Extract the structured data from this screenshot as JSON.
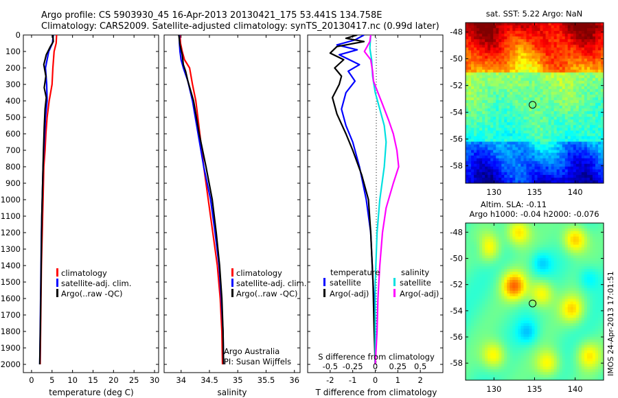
{
  "title_line1": "Argo profile: CS 5903930_45 16-Apr-2013 20130421_175 53.441S 134.758E",
  "title_line2": "Climatology: CARS2009. Satellite-adjusted climatology: synTS_20130417.nc (0.99d later)",
  "chart_data": [
    {
      "type": "line",
      "name": "temperature",
      "xlabel": "temperature (deg C)",
      "xlim": [
        -2,
        31
      ],
      "ylim": [
        0,
        2050
      ],
      "xticks": [
        0,
        5,
        10,
        15,
        20,
        25,
        30
      ],
      "yticks": [
        0,
        100,
        200,
        300,
        400,
        500,
        600,
        700,
        800,
        900,
        1000,
        1100,
        1200,
        1300,
        1400,
        1500,
        1600,
        1700,
        1800,
        1900,
        2000
      ],
      "legend": [
        "climatology",
        "satellite-adj. clim.",
        "Argo(..raw -QC)"
      ],
      "series": [
        {
          "name": "climatology",
          "color": "#ff0000",
          "points": [
            [
              6.1,
              0
            ],
            [
              6.0,
              50
            ],
            [
              5.5,
              100
            ],
            [
              5.2,
              200
            ],
            [
              5.0,
              300
            ],
            [
              4.3,
              400
            ],
            [
              3.8,
              500
            ],
            [
              3.5,
              600
            ],
            [
              3.3,
              700
            ],
            [
              3.0,
              800
            ],
            [
              2.8,
              1000
            ],
            [
              2.6,
              1200
            ],
            [
              2.4,
              1400
            ],
            [
              2.3,
              1600
            ],
            [
              2.2,
              1800
            ],
            [
              2.1,
              2000
            ]
          ]
        },
        {
          "name": "satellite-adj. clim.",
          "color": "#0000ff",
          "points": [
            [
              5.3,
              0
            ],
            [
              5.1,
              50
            ],
            [
              4.2,
              100
            ],
            [
              3.4,
              200
            ],
            [
              3.7,
              300
            ],
            [
              3.8,
              400
            ],
            [
              3.4,
              500
            ],
            [
              3.2,
              600
            ],
            [
              3.0,
              700
            ],
            [
              2.8,
              800
            ],
            [
              2.6,
              1000
            ],
            [
              2.4,
              1200
            ],
            [
              2.3,
              1400
            ],
            [
              2.2,
              1600
            ],
            [
              2.1,
              1800
            ],
            [
              2.0,
              2000
            ]
          ]
        },
        {
          "name": "Argo(..raw -QC)",
          "color": "#000000",
          "points": [
            [
              5.2,
              0
            ],
            [
              5.3,
              40
            ],
            [
              4.6,
              70
            ],
            [
              3.6,
              120
            ],
            [
              3.0,
              180
            ],
            [
              3.5,
              250
            ],
            [
              3.1,
              320
            ],
            [
              3.6,
              380
            ],
            [
              3.3,
              450
            ],
            [
              3.1,
              560
            ],
            [
              2.9,
              700
            ],
            [
              2.7,
              900
            ],
            [
              2.5,
              1100
            ],
            [
              2.4,
              1300
            ],
            [
              2.3,
              1500
            ],
            [
              2.2,
              1700
            ],
            [
              2.1,
              1850
            ],
            [
              2.0,
              2000
            ]
          ]
        }
      ]
    },
    {
      "type": "line",
      "name": "salinity",
      "xlabel": "salinity",
      "xlim": [
        33.7,
        36.1
      ],
      "ylim": [
        0,
        2050
      ],
      "xticks": [
        34,
        34.5,
        35,
        35.5,
        36
      ],
      "legend": [
        "climatology",
        "satellite-adj. clim.",
        "Argo(..raw -QC)"
      ],
      "annotation": [
        "Argo Australia",
        "PI: Susan Wijffels"
      ],
      "series": [
        {
          "name": "climatology",
          "color": "#ff0000",
          "points": [
            [
              33.98,
              0
            ],
            [
              33.99,
              50
            ],
            [
              34.02,
              100
            ],
            [
              34.06,
              150
            ],
            [
              34.15,
              200
            ],
            [
              34.2,
              300
            ],
            [
              34.26,
              400
            ],
            [
              34.33,
              600
            ],
            [
              34.4,
              800
            ],
            [
              34.48,
              1000
            ],
            [
              34.56,
              1200
            ],
            [
              34.64,
              1400
            ],
            [
              34.69,
              1600
            ],
            [
              34.72,
              1800
            ],
            [
              34.73,
              2000
            ]
          ]
        },
        {
          "name": "satellite-adj. clim.",
          "color": "#0000ff",
          "points": [
            [
              33.97,
              0
            ],
            [
              33.97,
              50
            ],
            [
              33.98,
              100
            ],
            [
              34.0,
              150
            ],
            [
              34.04,
              200
            ],
            [
              34.12,
              280
            ],
            [
              34.2,
              400
            ],
            [
              34.3,
              600
            ],
            [
              34.4,
              800
            ],
            [
              34.52,
              1000
            ],
            [
              34.6,
              1200
            ],
            [
              34.67,
              1400
            ],
            [
              34.71,
              1600
            ],
            [
              34.74,
              1800
            ],
            [
              34.75,
              2000
            ]
          ]
        },
        {
          "name": "Argo(..raw -QC)",
          "color": "#000000",
          "points": [
            [
              33.96,
              0
            ],
            [
              33.98,
              60
            ],
            [
              34.02,
              120
            ],
            [
              34.04,
              180
            ],
            [
              34.08,
              220
            ],
            [
              34.12,
              280
            ],
            [
              34.22,
              400
            ],
            [
              34.32,
              600
            ],
            [
              34.44,
              800
            ],
            [
              34.55,
              1000
            ],
            [
              34.62,
              1200
            ],
            [
              34.68,
              1400
            ],
            [
              34.72,
              1600
            ],
            [
              34.74,
              1800
            ],
            [
              34.75,
              2000
            ]
          ]
        }
      ]
    },
    {
      "type": "line",
      "name": "difference",
      "xlabel": "T difference from climatology",
      "xlabel_top": "S difference from climatology",
      "xlim": [
        -3,
        3
      ],
      "ylim": [
        0,
        2050
      ],
      "xticks": [
        -2,
        -1,
        0,
        1,
        2
      ],
      "xticks_labels": [
        "-2",
        "-1",
        "0",
        "1",
        "2"
      ],
      "sticks": [
        -0.5,
        -0.25,
        0,
        0.25,
        0.5
      ],
      "sticks_labels": [
        "-0.5",
        "-0.25",
        "0",
        "0.25",
        "0.5"
      ],
      "slim": [
        -0.75,
        0.75
      ],
      "legend_left_title": "temperature",
      "legend_right_title": "salinity",
      "legend": [
        "satellite",
        "Argo(-adj)",
        "satellite",
        "Argo(-adj)"
      ],
      "series": [
        {
          "name": "T satellite",
          "color": "#0000ff",
          "scale": "T",
          "points": [
            [
              -0.5,
              0
            ],
            [
              -0.9,
              30
            ],
            [
              -1.7,
              60
            ],
            [
              -0.8,
              90
            ],
            [
              -1.6,
              120
            ],
            [
              -0.7,
              180
            ],
            [
              -1.2,
              220
            ],
            [
              -0.9,
              280
            ],
            [
              -1.3,
              350
            ],
            [
              -1.5,
              450
            ],
            [
              -1.3,
              550
            ],
            [
              -1.0,
              650
            ],
            [
              -0.7,
              800
            ],
            [
              -0.4,
              1000
            ],
            [
              -0.2,
              1200
            ],
            [
              -0.1,
              1500
            ],
            [
              0.0,
              1700
            ],
            [
              0.0,
              2000
            ]
          ]
        },
        {
          "name": "T Argo(-adj)",
          "color": "#000000",
          "scale": "T",
          "points": [
            [
              -0.8,
              0
            ],
            [
              -1.3,
              20
            ],
            [
              -0.5,
              40
            ],
            [
              -1.7,
              70
            ],
            [
              -2.0,
              110
            ],
            [
              -1.4,
              150
            ],
            [
              -1.8,
              200
            ],
            [
              -1.5,
              250
            ],
            [
              -1.6,
              300
            ],
            [
              -1.9,
              380
            ],
            [
              -1.7,
              480
            ],
            [
              -1.3,
              600
            ],
            [
              -1.0,
              700
            ],
            [
              -0.6,
              850
            ],
            [
              -0.3,
              1000
            ],
            [
              -0.2,
              1200
            ],
            [
              -0.1,
              1500
            ],
            [
              -0.05,
              1800
            ],
            [
              0.0,
              2000
            ]
          ]
        },
        {
          "name": "S satellite",
          "color": "#00e0e0",
          "scale": "S",
          "points": [
            [
              -0.05,
              0
            ],
            [
              -0.06,
              80
            ],
            [
              -0.04,
              150
            ],
            [
              -0.03,
              250
            ],
            [
              0.0,
              350
            ],
            [
              0.05,
              450
            ],
            [
              0.1,
              550
            ],
            [
              0.12,
              650
            ],
            [
              0.1,
              800
            ],
            [
              0.05,
              1000
            ],
            [
              0.02,
              1200
            ],
            [
              0.0,
              1500
            ],
            [
              0.0,
              2000
            ]
          ]
        },
        {
          "name": "S Argo(-adj)",
          "color": "#ff00ff",
          "scale": "S",
          "points": [
            [
              -0.05,
              0
            ],
            [
              -0.06,
              40
            ],
            [
              -0.12,
              100
            ],
            [
              -0.05,
              150
            ],
            [
              -0.03,
              220
            ],
            [
              -0.02,
              280
            ],
            [
              0.03,
              350
            ],
            [
              0.08,
              420
            ],
            [
              0.15,
              520
            ],
            [
              0.2,
              600
            ],
            [
              0.24,
              700
            ],
            [
              0.26,
              800
            ],
            [
              0.2,
              900
            ],
            [
              0.12,
              1050
            ],
            [
              0.08,
              1200
            ],
            [
              0.05,
              1400
            ],
            [
              0.03,
              1600
            ],
            [
              0.02,
              1800
            ],
            [
              0.0,
              2000
            ]
          ]
        }
      ]
    },
    {
      "type": "heatmap",
      "name": "SST map",
      "title": "sat. SST: 5.22  Argo: NaN",
      "xlim": [
        126.5,
        143.5
      ],
      "ylim": [
        -59.3,
        -47.3
      ],
      "xticks": [
        130,
        135,
        140
      ],
      "yticks": [
        -48,
        -50,
        -52,
        -54,
        -56,
        -58
      ],
      "marker": [
        134.758,
        -53.441
      ]
    },
    {
      "type": "heatmap",
      "name": "SLA map",
      "title_line1": "Altim. SLA: -0.11",
      "title_line2": "Argo h1000: -0.04 h2000: -0.076",
      "xlim": [
        126.5,
        143.5
      ],
      "ylim": [
        -59.3,
        -47.3
      ],
      "xticks": [
        130,
        135,
        140
      ],
      "yticks": [
        -48,
        -50,
        -52,
        -54,
        -56,
        -58
      ],
      "marker": [
        134.758,
        -53.441
      ]
    }
  ],
  "footer_stamp": "IMOS 24-Apr-2013 17:01:51"
}
